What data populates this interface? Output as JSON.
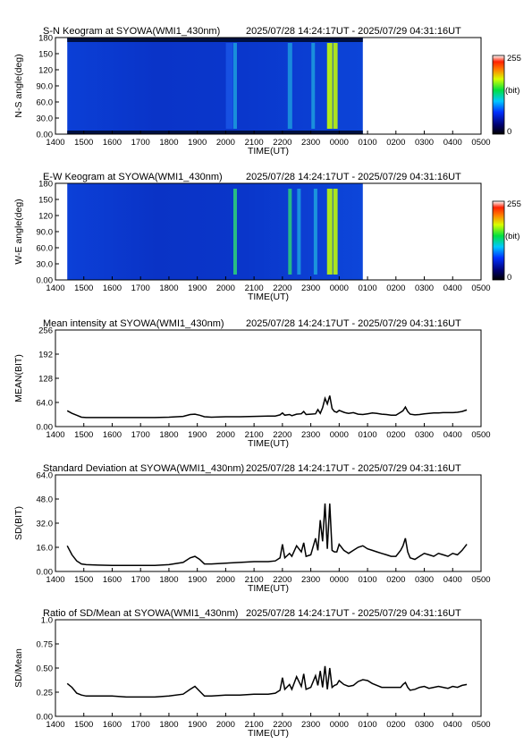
{
  "period": "2025/07/28 14:24:17UT - 2025/07/29 04:31:16UT",
  "chart_data": [
    {
      "type": "heatmap",
      "title": "S-N Keogram at SYOWA(WMI1_430nm)",
      "xlabel": "TIME(UT)",
      "ylabel": "N-S angle(deg)",
      "xticks": [
        "1400",
        "1500",
        "1600",
        "1700",
        "1800",
        "1900",
        "2000",
        "2100",
        "2200",
        "2300",
        "0000",
        "0100",
        "0200",
        "0300",
        "0400",
        "0500"
      ],
      "yticks": [
        "0.00",
        "30.0",
        "60.0",
        "90.0",
        "120",
        "150",
        "180"
      ],
      "ylim": [
        0,
        180
      ],
      "colorbar": {
        "min_label": "0",
        "max_label": "255",
        "unit_label": "(bit)"
      },
      "features": [
        {
          "x": 2340,
          "intensity": 0.85,
          "width": 6
        },
        {
          "x": 2352,
          "intensity": 0.75,
          "width": 5
        },
        {
          "x": 2216,
          "intensity": 0.35,
          "width": 5
        },
        {
          "x": 2305,
          "intensity": 0.4,
          "width": 4
        },
        {
          "x": 2008,
          "intensity": 0.15,
          "width": 8
        },
        {
          "x": 2020,
          "intensity": 0.45,
          "width": 4
        }
      ]
    },
    {
      "type": "heatmap",
      "title": "E-W Keogram at SYOWA(WMI1_430nm)",
      "xlabel": "TIME(UT)",
      "ylabel": "W-E angle(deg)",
      "xticks": [
        "1400",
        "1500",
        "1600",
        "1700",
        "1800",
        "1900",
        "2000",
        "2100",
        "2200",
        "2300",
        "0000",
        "0100",
        "0200",
        "0300",
        "0400",
        "0500"
      ],
      "yticks": [
        "0.00",
        "30.0",
        "60.0",
        "90.0",
        "120",
        "150",
        "180"
      ],
      "ylim": [
        0,
        180
      ],
      "colorbar": {
        "min_label": "0",
        "max_label": "255",
        "unit_label": "(bit)"
      },
      "features": [
        {
          "x": 2340,
          "intensity": 0.8,
          "width": 6
        },
        {
          "x": 2352,
          "intensity": 0.75,
          "width": 5
        },
        {
          "x": 2216,
          "intensity": 0.55,
          "width": 4
        },
        {
          "x": 2235,
          "intensity": 0.45,
          "width": 4
        },
        {
          "x": 2310,
          "intensity": 0.5,
          "width": 4
        },
        {
          "x": 2020,
          "intensity": 0.6,
          "width": 4
        }
      ]
    },
    {
      "type": "line",
      "title": "Mean intensity at SYOWA(WMI1_430nm)",
      "xlabel": "TIME(UT)",
      "ylabel": "MEAN(BIT)",
      "xticks": [
        "1400",
        "1500",
        "1600",
        "1700",
        "1800",
        "1900",
        "2000",
        "2100",
        "2200",
        "2300",
        "0000",
        "0100",
        "0200",
        "0300",
        "0400",
        "0500"
      ],
      "yticks": [
        "0.00",
        "64.0",
        "128",
        "192",
        "256"
      ],
      "ylim": [
        0,
        256
      ],
      "series": [
        {
          "x": [
            1425,
            1435,
            1445,
            1455,
            1505,
            1530,
            1600,
            1630,
            1700,
            1730,
            1800,
            1830,
            1845,
            1855,
            1905,
            1915,
            1930,
            2000,
            2030,
            2100,
            2130,
            2145,
            2155,
            2200,
            2205,
            2215,
            2220,
            2230,
            2240,
            2245,
            2250,
            2300,
            2310,
            2315,
            2320,
            2325,
            2330,
            2335,
            2340,
            2345,
            2350,
            2355,
            2400,
            2410,
            2415,
            2420,
            2430,
            2440,
            2450,
            2500,
            2510,
            2520,
            2530,
            2540,
            2550,
            2600,
            2610,
            2615,
            2620,
            2625,
            2630,
            2640,
            2650,
            2700,
            2710,
            2720,
            2730,
            2740,
            2750,
            2800,
            2810,
            2820,
            2830
          ],
          "y": [
            42,
            35,
            30,
            25,
            24,
            24,
            24,
            24,
            24,
            24,
            25,
            27,
            32,
            33,
            30,
            26,
            25,
            26,
            26,
            27,
            28,
            28,
            31,
            36,
            30,
            32,
            29,
            33,
            34,
            40,
            32,
            33,
            34,
            45,
            35,
            50,
            75,
            60,
            82,
            48,
            40,
            38,
            43,
            38,
            36,
            35,
            37,
            33,
            32,
            34,
            36,
            35,
            33,
            32,
            30,
            30,
            38,
            42,
            52,
            40,
            33,
            31,
            32,
            34,
            35,
            36,
            36,
            37,
            37,
            37,
            38,
            40,
            44
          ]
        }
      ]
    },
    {
      "type": "line",
      "title": "Standard Deviation at SYOWA(WMI1_430nm)",
      "xlabel": "TIME(UT)",
      "ylabel": "SD(BIT)",
      "xticks": [
        "1400",
        "1500",
        "1600",
        "1700",
        "1800",
        "1900",
        "2000",
        "2100",
        "2200",
        "2300",
        "0000",
        "0100",
        "0200",
        "0300",
        "0400",
        "0500"
      ],
      "yticks": [
        "0.00",
        "16.0",
        "32.0",
        "48.0",
        "64.0"
      ],
      "ylim": [
        0,
        64
      ],
      "series": [
        {
          "x": [
            1425,
            1435,
            1445,
            1455,
            1505,
            1530,
            1600,
            1630,
            1700,
            1730,
            1800,
            1830,
            1845,
            1855,
            1905,
            1915,
            1930,
            2000,
            2030,
            2100,
            2130,
            2145,
            2155,
            2200,
            2205,
            2215,
            2220,
            2230,
            2240,
            2245,
            2250,
            2300,
            2310,
            2315,
            2320,
            2325,
            2330,
            2335,
            2340,
            2345,
            2350,
            2355,
            2400,
            2410,
            2415,
            2420,
            2430,
            2440,
            2450,
            2500,
            2510,
            2520,
            2530,
            2540,
            2550,
            2600,
            2610,
            2615,
            2620,
            2625,
            2630,
            2640,
            2650,
            2700,
            2710,
            2720,
            2730,
            2740,
            2750,
            2800,
            2810,
            2820,
            2830
          ],
          "y": [
            17,
            11,
            7,
            5,
            4.5,
            4.2,
            4,
            4,
            4,
            4,
            4.5,
            6,
            9,
            10,
            8,
            5,
            5,
            5.5,
            6,
            6.5,
            6.5,
            7,
            9,
            18,
            9,
            12,
            10,
            17,
            13,
            19,
            10,
            11,
            22,
            14,
            34,
            20,
            45,
            15,
            45,
            14,
            13,
            13,
            18,
            14,
            13,
            12,
            14,
            16,
            17,
            15,
            14,
            13,
            12,
            11,
            10,
            10,
            14,
            17,
            22,
            13,
            9,
            8,
            10,
            12,
            11,
            10,
            12,
            11,
            10,
            12,
            11,
            14,
            18
          ]
        }
      ]
    },
    {
      "type": "line",
      "title": "Ratio of SD/Mean at SYOWA(WMI1_430nm)",
      "xlabel": "TIME(UT)",
      "ylabel": "SD/Mean",
      "xticks": [
        "1400",
        "1500",
        "1600",
        "1700",
        "1800",
        "1900",
        "2000",
        "2100",
        "2200",
        "2300",
        "0000",
        "0100",
        "0200",
        "0300",
        "0400",
        "0500"
      ],
      "yticks": [
        "0.00",
        "0.25",
        "0.50",
        "0.75",
        "1.0"
      ],
      "ylim": [
        0,
        1.0
      ],
      "series": [
        {
          "x": [
            1425,
            1435,
            1445,
            1455,
            1505,
            1530,
            1600,
            1630,
            1700,
            1730,
            1800,
            1830,
            1845,
            1855,
            1905,
            1915,
            1930,
            2000,
            2030,
            2100,
            2130,
            2145,
            2155,
            2200,
            2205,
            2215,
            2220,
            2230,
            2240,
            2245,
            2250,
            2300,
            2310,
            2315,
            2320,
            2325,
            2330,
            2335,
            2340,
            2345,
            2350,
            2355,
            2400,
            2410,
            2415,
            2420,
            2430,
            2440,
            2450,
            2500,
            2510,
            2520,
            2530,
            2540,
            2550,
            2600,
            2610,
            2615,
            2620,
            2625,
            2630,
            2640,
            2650,
            2700,
            2710,
            2720,
            2730,
            2740,
            2750,
            2800,
            2810,
            2820,
            2830
          ],
          "y": [
            0.34,
            0.3,
            0.24,
            0.22,
            0.21,
            0.21,
            0.21,
            0.2,
            0.2,
            0.2,
            0.21,
            0.23,
            0.28,
            0.31,
            0.26,
            0.21,
            0.21,
            0.22,
            0.22,
            0.23,
            0.23,
            0.24,
            0.27,
            0.4,
            0.28,
            0.33,
            0.28,
            0.41,
            0.31,
            0.44,
            0.28,
            0.3,
            0.42,
            0.32,
            0.47,
            0.3,
            0.52,
            0.28,
            0.5,
            0.3,
            0.32,
            0.33,
            0.37,
            0.33,
            0.32,
            0.31,
            0.32,
            0.36,
            0.38,
            0.37,
            0.34,
            0.32,
            0.3,
            0.3,
            0.3,
            0.3,
            0.3,
            0.33,
            0.35,
            0.3,
            0.27,
            0.28,
            0.3,
            0.31,
            0.29,
            0.3,
            0.31,
            0.3,
            0.29,
            0.31,
            0.3,
            0.32,
            0.33
          ]
        }
      ]
    }
  ]
}
